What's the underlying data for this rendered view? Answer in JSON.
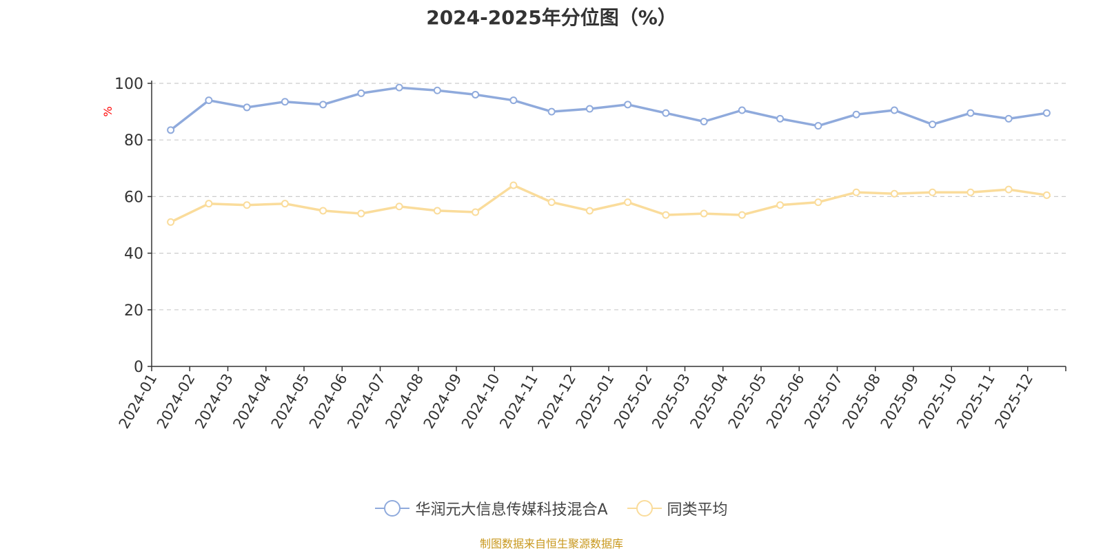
{
  "title": "2024-2025年分位图（%）",
  "source": "制图数据来自恒生聚源数据库",
  "colors": {
    "series_a": "#8faadc",
    "series_b": "#fadc9b",
    "axis": "#333333",
    "grid": "#cccccc",
    "ylabel": "#ff0000",
    "source": "#c8981e"
  },
  "chart_data": {
    "type": "line",
    "title": "2024-2025年分位图（%）",
    "ylabel": "%",
    "xlabel": "",
    "ylim": [
      0,
      100
    ],
    "yticks": [
      0,
      20,
      40,
      60,
      80,
      100
    ],
    "grid": true,
    "legend_position": "bottom",
    "categories": [
      "2024-01",
      "2024-02",
      "2024-03",
      "2024-04",
      "2024-05",
      "2024-06",
      "2024-07",
      "2024-08",
      "2024-09",
      "2024-10",
      "2024-11",
      "2024-12",
      "2025-01",
      "2025-02",
      "2025-03",
      "2025-04",
      "2025-05",
      "2025-06",
      "2025-07",
      "2025-08",
      "2025-09",
      "2025-10",
      "2025-11",
      "2025-12"
    ],
    "series": [
      {
        "name": "华润元大信息传媒科技混合A",
        "values": [
          83.5,
          94,
          91.5,
          93.5,
          92.5,
          96.5,
          98.5,
          97.5,
          96,
          94,
          90,
          91,
          92.5,
          89.5,
          86.5,
          90.5,
          87.5,
          85,
          89,
          90.5,
          85.5,
          89.5,
          87.5,
          89.5
        ]
      },
      {
        "name": "同类平均",
        "values": [
          51,
          57.5,
          57,
          57.5,
          55,
          54,
          56.5,
          55,
          54.5,
          64,
          58,
          55,
          58,
          53.5,
          54,
          53.5,
          57,
          58,
          61.5,
          61,
          61.5,
          61.5,
          62.5,
          60.5
        ]
      }
    ]
  }
}
